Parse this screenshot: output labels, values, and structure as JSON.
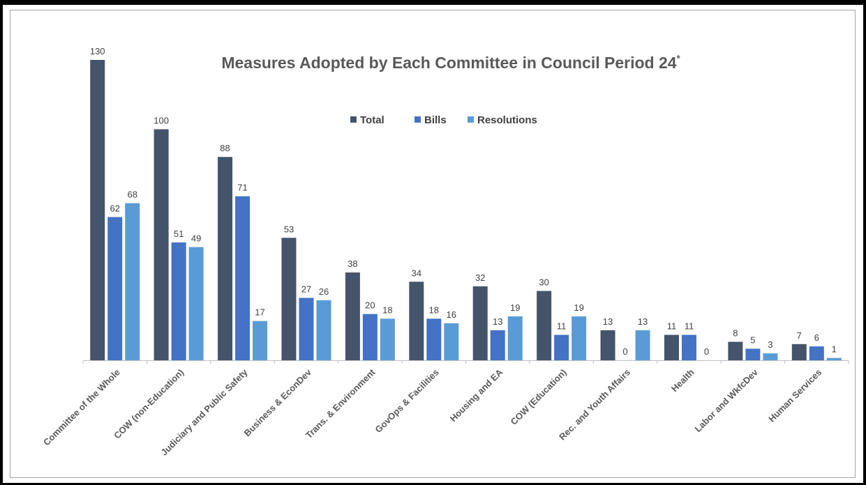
{
  "chart_data": {
    "type": "bar",
    "title": "Measures Adopted by Each Committee in Council Period 24",
    "title_superscript": "*",
    "xlabel": "",
    "ylabel": "",
    "ylim": [
      0,
      130
    ],
    "grid": false,
    "legend_placement": "top-center",
    "categories": [
      "Committee of the Whole",
      "COW (non-Education)",
      "Judiciary and Public Safety",
      "Business & EconDev",
      "Trans. & Environment",
      "GovOps & Facilities",
      "Housing and EA",
      "COW (Education)",
      "Rec. and Youth Affairs",
      "Health",
      "Labor and WkfcDev",
      "Human Services"
    ],
    "series": [
      {
        "name": "Total",
        "color": "#44546a",
        "values": [
          130,
          100,
          88,
          53,
          38,
          34,
          32,
          30,
          13,
          11,
          8,
          7
        ]
      },
      {
        "name": "Bills",
        "color": "#4472c4",
        "values": [
          62,
          51,
          71,
          27,
          20,
          18,
          13,
          11,
          0,
          11,
          5,
          6
        ]
      },
      {
        "name": "Resolutions",
        "color": "#5b9bd5",
        "values": [
          68,
          49,
          17,
          26,
          18,
          16,
          19,
          19,
          13,
          0,
          3,
          1
        ]
      }
    ]
  }
}
